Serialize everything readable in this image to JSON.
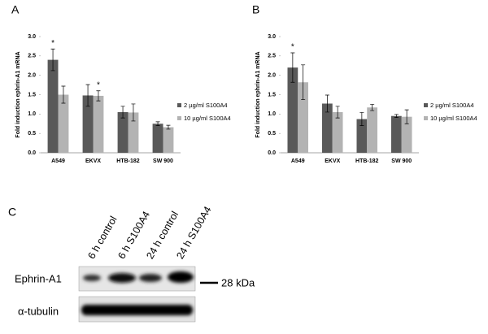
{
  "chart_data": [
    {
      "type": "bar",
      "panel": "A",
      "ylabel": "Fold induction ephrin-A1 mRNA",
      "categories": [
        "A549",
        "EKVX",
        "HTB-182",
        "SW 900"
      ],
      "series": [
        {
          "name": "2 µg/ml S100A4",
          "color": "#595959",
          "values": [
            2.4,
            1.48,
            1.05,
            0.75
          ],
          "errors": [
            0.28,
            0.28,
            0.15,
            0.05
          ],
          "annotations": [
            "*",
            null,
            null,
            null
          ]
        },
        {
          "name": "10 µg/ml S100A4",
          "color": "#b3b3b3",
          "values": [
            1.5,
            1.47,
            1.04,
            0.66
          ],
          "errors": [
            0.22,
            0.13,
            0.22,
            0.05
          ],
          "annotations": [
            null,
            "*",
            null,
            null
          ]
        }
      ],
      "ylim": [
        0,
        3
      ],
      "yticks": [
        {
          "value": 0,
          "label": "0.0"
        },
        0.5,
        {
          "value": 1,
          "label": "1.0"
        },
        1.5,
        {
          "value": 2,
          "label": "2.0"
        },
        2.5,
        {
          "value": 3,
          "label": "3.0"
        }
      ],
      "legend": "right"
    },
    {
      "type": "bar",
      "panel": "B",
      "ylabel": "Fold induction ephrin-A1 mRNA",
      "categories": [
        "A549",
        "EKVX",
        "HTB-182",
        "SW 900"
      ],
      "series": [
        {
          "name": "2 µg/ml S100A4",
          "color": "#595959",
          "values": [
            2.2,
            1.27,
            0.87,
            0.95
          ],
          "errors": [
            0.38,
            0.22,
            0.17,
            0.04
          ],
          "annotations": [
            "*",
            null,
            null,
            null
          ]
        },
        {
          "name": "10 µg/ml S100A4",
          "color": "#b3b3b3",
          "values": [
            1.82,
            1.05,
            1.17,
            0.93
          ],
          "errors": [
            0.45,
            0.15,
            0.08,
            0.18
          ],
          "annotations": [
            null,
            null,
            null,
            null
          ]
        }
      ],
      "ylim": [
        0,
        3
      ],
      "yticks": [
        {
          "value": 0,
          "label": "0.0"
        },
        0.5,
        {
          "value": 1,
          "label": "1.0"
        },
        1.5,
        {
          "value": 2,
          "label": "2.0"
        },
        2.5,
        {
          "value": 3,
          "label": "3.0"
        }
      ],
      "legend": "right"
    }
  ],
  "blot": {
    "panel": "C",
    "lanes": [
      "6 h control",
      "6 h S100A4",
      "24 h control",
      "24 h S100A4"
    ],
    "rows": [
      "Ephrin-A1",
      "α-tubulin"
    ],
    "marker": "28 kDa"
  }
}
